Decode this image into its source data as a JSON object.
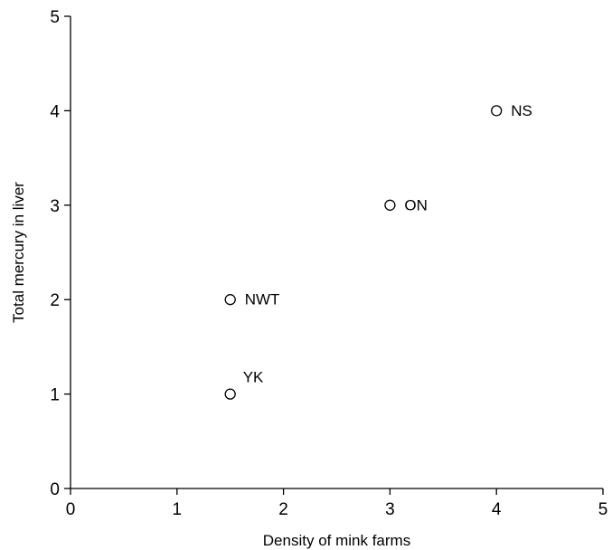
{
  "chart_data": {
    "type": "scatter",
    "title": "",
    "xlabel": "Density of mink farms",
    "ylabel": "Total mercury in liver",
    "xlim": [
      0,
      5
    ],
    "ylim": [
      0,
      5
    ],
    "x_ticks": [
      "0",
      "1",
      "2",
      "3",
      "4",
      "5"
    ],
    "y_ticks": [
      "0",
      "1",
      "2",
      "3",
      "4",
      "5"
    ],
    "grid": false,
    "legend": "none",
    "marker": "open-circle",
    "points": [
      {
        "label": "YK",
        "x": 1.5,
        "y": 1
      },
      {
        "label": "NWT",
        "x": 1.5,
        "y": 2
      },
      {
        "label": "ON",
        "x": 3,
        "y": 3
      },
      {
        "label": "NS",
        "x": 4,
        "y": 4
      }
    ]
  }
}
